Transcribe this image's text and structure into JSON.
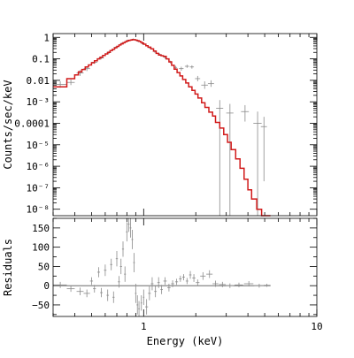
{
  "colors": {
    "model": "#d11a1a",
    "data": "#8a8a8a",
    "axes": "#000000"
  },
  "chart_data": [
    {
      "panel": "spectrum",
      "type": "line",
      "xlabel": "",
      "ylabel": "Counts/sec/keV",
      "xscale": "log",
      "yscale": "log",
      "xlim": [
        0.3,
        10
      ],
      "ylim": [
        5e-09,
        1.5
      ],
      "xticks": [
        {
          "value": 1,
          "label": ""
        },
        {
          "value": 10,
          "label": ""
        }
      ],
      "yticks": [
        {
          "value": 1,
          "label": "1"
        },
        {
          "value": 0.1,
          "label": "0.1"
        },
        {
          "value": 0.01,
          "label": "0.01"
        },
        {
          "value": 0.001,
          "label": "10⁻³"
        },
        {
          "value": 0.0001,
          "label": "0.0001"
        },
        {
          "value": 1e-05,
          "label": "10⁻⁵"
        },
        {
          "value": 1e-06,
          "label": "10⁻⁶"
        },
        {
          "value": 1e-07,
          "label": "10⁻⁷"
        },
        {
          "value": 1e-08,
          "label": "10⁻⁸"
        }
      ],
      "series": [
        {
          "kind": "model-step",
          "x": [
            0.3,
            0.36,
            0.4,
            0.42,
            0.44,
            0.46,
            0.48,
            0.5,
            0.52,
            0.54,
            0.56,
            0.58,
            0.6,
            0.62,
            0.64,
            0.66,
            0.68,
            0.7,
            0.72,
            0.74,
            0.76,
            0.78,
            0.8,
            0.82,
            0.84,
            0.86,
            0.88,
            0.9,
            0.92,
            0.94,
            0.96,
            0.98,
            1.0,
            1.03,
            1.06,
            1.1,
            1.14,
            1.18,
            1.22,
            1.26,
            1.3,
            1.35,
            1.4,
            1.45,
            1.5,
            1.56,
            1.62,
            1.68,
            1.75,
            1.82,
            1.9,
            1.98,
            2.06,
            2.16,
            2.26,
            2.38,
            2.5,
            2.6,
            2.75,
            2.9,
            3.05,
            3.2,
            3.4,
            3.6,
            3.8,
            4.0,
            4.2,
            4.5,
            4.8,
            5.1,
            5.4
          ],
          "y": [
            0.005,
            0.012,
            0.018,
            0.025,
            0.032,
            0.042,
            0.052,
            0.066,
            0.082,
            0.1,
            0.12,
            0.145,
            0.17,
            0.2,
            0.24,
            0.28,
            0.33,
            0.38,
            0.44,
            0.5,
            0.56,
            0.62,
            0.68,
            0.73,
            0.76,
            0.78,
            0.77,
            0.74,
            0.7,
            0.65,
            0.6,
            0.54,
            0.48,
            0.41,
            0.35,
            0.29,
            0.23,
            0.18,
            0.15,
            0.14,
            0.13,
            0.1,
            0.072,
            0.05,
            0.033,
            0.023,
            0.016,
            0.011,
            0.0075,
            0.005,
            0.0034,
            0.0023,
            0.0015,
            0.0009,
            0.00055,
            0.00033,
            0.00022,
            0.00011,
            6e-05,
            3e-05,
            1.3e-05,
            6e-06,
            2.2e-06,
            8e-07,
            2.5e-07,
            8e-08,
            3e-08,
            1e-08,
            5e-09,
            5e-09,
            5e-09
          ],
          "x_end": 5.4
        },
        {
          "kind": "data-points",
          "points": [
            {
              "x": 0.33,
              "xlo": 0.3,
              "xhi": 0.36,
              "y": 0.0065,
              "ylo": 0.0045,
              "yhi": 0.009
            },
            {
              "x": 0.38,
              "xlo": 0.36,
              "xhi": 0.4,
              "y": 0.008,
              "ylo": 0.006,
              "yhi": 0.011
            },
            {
              "x": 0.43,
              "xlo": 0.41,
              "xhi": 0.45,
              "y": 0.022,
              "ylo": 0.016,
              "yhi": 0.03
            },
            {
              "x": 0.47,
              "xlo": 0.45,
              "xhi": 0.49,
              "y": 0.035,
              "ylo": 0.027,
              "yhi": 0.045
            },
            {
              "x": 0.52,
              "xlo": 0.5,
              "xhi": 0.54,
              "y": 0.07,
              "ylo": 0.058,
              "yhi": 0.085
            },
            {
              "x": 0.57,
              "xlo": 0.55,
              "xhi": 0.59,
              "y": 0.11,
              "ylo": 0.095,
              "yhi": 0.13
            },
            {
              "x": 0.63,
              "xlo": 0.61,
              "xhi": 0.65,
              "y": 0.2,
              "ylo": 0.17,
              "yhi": 0.23
            },
            {
              "x": 0.69,
              "xlo": 0.67,
              "xhi": 0.71,
              "y": 0.34,
              "ylo": 0.3,
              "yhi": 0.38
            },
            {
              "x": 0.75,
              "xlo": 0.73,
              "xhi": 0.77,
              "y": 0.52,
              "ylo": 0.47,
              "yhi": 0.58
            },
            {
              "x": 0.81,
              "xlo": 0.79,
              "xhi": 0.83,
              "y": 0.72,
              "ylo": 0.66,
              "yhi": 0.78
            },
            {
              "x": 0.87,
              "xlo": 0.85,
              "xhi": 0.89,
              "y": 0.82,
              "ylo": 0.76,
              "yhi": 0.89
            },
            {
              "x": 0.93,
              "xlo": 0.91,
              "xhi": 0.95,
              "y": 0.66,
              "ylo": 0.6,
              "yhi": 0.72
            },
            {
              "x": 0.99,
              "xlo": 0.97,
              "xhi": 1.01,
              "y": 0.5,
              "ylo": 0.45,
              "yhi": 0.56
            },
            {
              "x": 1.08,
              "xlo": 1.05,
              "xhi": 1.11,
              "y": 0.34,
              "ylo": 0.3,
              "yhi": 0.38
            },
            {
              "x": 1.16,
              "xlo": 1.13,
              "xhi": 1.19,
              "y": 0.22,
              "ylo": 0.19,
              "yhi": 0.25
            },
            {
              "x": 1.24,
              "xlo": 1.21,
              "xhi": 1.27,
              "y": 0.16,
              "ylo": 0.14,
              "yhi": 0.18
            },
            {
              "x": 1.33,
              "xlo": 1.3,
              "xhi": 1.36,
              "y": 0.12,
              "ylo": 0.1,
              "yhi": 0.14
            },
            {
              "x": 1.43,
              "xlo": 1.4,
              "xhi": 1.46,
              "y": 0.07,
              "ylo": 0.06,
              "yhi": 0.082
            },
            {
              "x": 1.53,
              "xlo": 1.5,
              "xhi": 1.56,
              "y": 0.04,
              "ylo": 0.034,
              "yhi": 0.047
            },
            {
              "x": 1.65,
              "xlo": 1.6,
              "xhi": 1.7,
              "y": 0.035,
              "ylo": 0.028,
              "yhi": 0.043
            },
            {
              "x": 1.78,
              "xlo": 1.73,
              "xhi": 1.83,
              "y": 0.045,
              "ylo": 0.038,
              "yhi": 0.053
            },
            {
              "x": 1.9,
              "xlo": 1.85,
              "xhi": 1.95,
              "y": 0.042,
              "ylo": 0.035,
              "yhi": 0.05
            },
            {
              "x": 2.05,
              "xlo": 1.98,
              "xhi": 2.12,
              "y": 0.012,
              "ylo": 0.009,
              "yhi": 0.016
            },
            {
              "x": 2.25,
              "xlo": 2.15,
              "xhi": 2.35,
              "y": 0.006,
              "ylo": 0.004,
              "yhi": 0.009
            },
            {
              "x": 2.45,
              "xlo": 2.35,
              "xhi": 2.55,
              "y": 0.007,
              "ylo": 0.005,
              "yhi": 0.01
            },
            {
              "x": 2.75,
              "xlo": 2.62,
              "xhi": 2.88,
              "y": 0.0005,
              "ylo": 4.5e-09,
              "yhi": 0.0012
            },
            {
              "x": 3.15,
              "xlo": 3.0,
              "xhi": 3.3,
              "y": 0.0003,
              "ylo": 4.5e-09,
              "yhi": 0.0008
            },
            {
              "x": 3.85,
              "xlo": 3.65,
              "xhi": 4.05,
              "y": 0.00035,
              "ylo": 0.00012,
              "yhi": 0.0007
            },
            {
              "x": 4.55,
              "xlo": 4.3,
              "xhi": 4.8,
              "y": 0.0001,
              "ylo": 4.5e-09,
              "yhi": 0.00035
            },
            {
              "x": 4.95,
              "xlo": 4.75,
              "xhi": 5.15,
              "y": 7e-05,
              "ylo": 2e-07,
              "yhi": 0.0002
            }
          ]
        }
      ]
    },
    {
      "panel": "residuals",
      "type": "scatter",
      "xlabel": "Energy (keV)",
      "ylabel": "Residuals",
      "xscale": "log",
      "xlim": [
        0.3,
        10
      ],
      "ylim": [
        -80,
        175
      ],
      "zero_line": true,
      "xticks": [
        {
          "value": 1,
          "label": "1"
        },
        {
          "value": 10,
          "label": "10"
        }
      ],
      "yticks": [
        {
          "value": 150,
          "label": "150"
        },
        {
          "value": 100,
          "label": "100"
        },
        {
          "value": 50,
          "label": "50"
        },
        {
          "value": 0,
          "label": "0"
        },
        {
          "value": -50,
          "label": "−50"
        }
      ],
      "series": [
        {
          "kind": "residual-points",
          "points": [
            {
              "x": 0.33,
              "xlo": 0.3,
              "xhi": 0.36,
              "y": 2,
              "ylo": -6,
              "yhi": 10
            },
            {
              "x": 0.38,
              "xlo": 0.36,
              "xhi": 0.4,
              "y": -8,
              "ylo": -16,
              "yhi": 0
            },
            {
              "x": 0.43,
              "xlo": 0.41,
              "xhi": 0.45,
              "y": -15,
              "ylo": -25,
              "yhi": -5
            },
            {
              "x": 0.47,
              "xlo": 0.45,
              "xhi": 0.49,
              "y": -20,
              "ylo": -30,
              "yhi": -10
            },
            {
              "x": 0.5,
              "xlo": 0.49,
              "xhi": 0.51,
              "y": 12,
              "ylo": 2,
              "yhi": 22
            },
            {
              "x": 0.52,
              "xlo": 0.51,
              "xhi": 0.53,
              "y": -8,
              "ylo": -18,
              "yhi": 2
            },
            {
              "x": 0.55,
              "xlo": 0.54,
              "xhi": 0.56,
              "y": 35,
              "ylo": 22,
              "yhi": 48
            },
            {
              "x": 0.57,
              "xlo": 0.56,
              "xhi": 0.58,
              "y": -18,
              "ylo": -30,
              "yhi": -6
            },
            {
              "x": 0.6,
              "xlo": 0.59,
              "xhi": 0.61,
              "y": 40,
              "ylo": 25,
              "yhi": 55
            },
            {
              "x": 0.62,
              "xlo": 0.61,
              "xhi": 0.63,
              "y": -25,
              "ylo": -40,
              "yhi": -10
            },
            {
              "x": 0.65,
              "xlo": 0.64,
              "xhi": 0.66,
              "y": 55,
              "ylo": 40,
              "yhi": 70
            },
            {
              "x": 0.67,
              "xlo": 0.66,
              "xhi": 0.68,
              "y": -30,
              "ylo": -45,
              "yhi": -15
            },
            {
              "x": 0.7,
              "xlo": 0.69,
              "xhi": 0.71,
              "y": 70,
              "ylo": 50,
              "yhi": 90
            },
            {
              "x": 0.72,
              "xlo": 0.71,
              "xhi": 0.73,
              "y": 10,
              "ylo": -5,
              "yhi": 25
            },
            {
              "x": 0.74,
              "xlo": 0.73,
              "xhi": 0.75,
              "y": 50,
              "ylo": 30,
              "yhi": 70
            },
            {
              "x": 0.76,
              "xlo": 0.75,
              "xhi": 0.77,
              "y": 95,
              "ylo": 75,
              "yhi": 115
            },
            {
              "x": 0.78,
              "xlo": 0.77,
              "xhi": 0.79,
              "y": 30,
              "ylo": 10,
              "yhi": 50
            },
            {
              "x": 0.8,
              "xlo": 0.79,
              "xhi": 0.81,
              "y": 140,
              "ylo": 115,
              "yhi": 165
            },
            {
              "x": 0.82,
              "xlo": 0.81,
              "xhi": 0.83,
              "y": 160,
              "ylo": 140,
              "yhi": 175
            },
            {
              "x": 0.84,
              "xlo": 0.83,
              "xhi": 0.85,
              "y": 150,
              "ylo": 125,
              "yhi": 175
            },
            {
              "x": 0.86,
              "xlo": 0.85,
              "xhi": 0.87,
              "y": 120,
              "ylo": 95,
              "yhi": 145
            },
            {
              "x": 0.88,
              "xlo": 0.87,
              "xhi": 0.89,
              "y": 60,
              "ylo": 35,
              "yhi": 85
            },
            {
              "x": 0.9,
              "xlo": 0.89,
              "xhi": 0.91,
              "y": -20,
              "ylo": -45,
              "yhi": 5
            },
            {
              "x": 0.92,
              "xlo": 0.91,
              "xhi": 0.93,
              "y": -50,
              "ylo": -75,
              "yhi": -25
            },
            {
              "x": 0.94,
              "xlo": 0.93,
              "xhi": 0.95,
              "y": -60,
              "ylo": -80,
              "yhi": -40
            },
            {
              "x": 0.97,
              "xlo": 0.96,
              "xhi": 0.98,
              "y": -45,
              "ylo": -65,
              "yhi": -25
            },
            {
              "x": 1.0,
              "xlo": 0.99,
              "xhi": 1.01,
              "y": -30,
              "ylo": -50,
              "yhi": -10
            },
            {
              "x": 1.04,
              "xlo": 1.02,
              "xhi": 1.06,
              "y": -55,
              "ylo": -75,
              "yhi": -35
            },
            {
              "x": 1.08,
              "xlo": 1.06,
              "xhi": 1.1,
              "y": -20,
              "ylo": -38,
              "yhi": -2
            },
            {
              "x": 1.12,
              "xlo": 1.1,
              "xhi": 1.14,
              "y": 5,
              "ylo": -12,
              "yhi": 22
            },
            {
              "x": 1.17,
              "xlo": 1.15,
              "xhi": 1.19,
              "y": -15,
              "ylo": -30,
              "yhi": 0
            },
            {
              "x": 1.22,
              "xlo": 1.2,
              "xhi": 1.24,
              "y": 8,
              "ylo": -6,
              "yhi": 22
            },
            {
              "x": 1.27,
              "xlo": 1.25,
              "xhi": 1.29,
              "y": -10,
              "ylo": -22,
              "yhi": 2
            },
            {
              "x": 1.33,
              "xlo": 1.3,
              "xhi": 1.36,
              "y": 12,
              "ylo": 2,
              "yhi": 22
            },
            {
              "x": 1.4,
              "xlo": 1.37,
              "xhi": 1.43,
              "y": -5,
              "ylo": -15,
              "yhi": 5
            },
            {
              "x": 1.47,
              "xlo": 1.44,
              "xhi": 1.5,
              "y": 5,
              "ylo": -4,
              "yhi": 14
            },
            {
              "x": 1.55,
              "xlo": 1.52,
              "xhi": 1.58,
              "y": 10,
              "ylo": 2,
              "yhi": 18
            },
            {
              "x": 1.63,
              "xlo": 1.6,
              "xhi": 1.66,
              "y": 18,
              "ylo": 10,
              "yhi": 26
            },
            {
              "x": 1.7,
              "xlo": 1.67,
              "xhi": 1.73,
              "y": 22,
              "ylo": 14,
              "yhi": 30
            },
            {
              "x": 1.78,
              "xlo": 1.75,
              "xhi": 1.81,
              "y": 12,
              "ylo": 4,
              "yhi": 20
            },
            {
              "x": 1.86,
              "xlo": 1.83,
              "xhi": 1.89,
              "y": 28,
              "ylo": 18,
              "yhi": 38
            },
            {
              "x": 1.95,
              "xlo": 1.91,
              "xhi": 1.99,
              "y": 20,
              "ylo": 10,
              "yhi": 30
            },
            {
              "x": 2.05,
              "xlo": 2.0,
              "xhi": 2.1,
              "y": 8,
              "ylo": 0,
              "yhi": 16
            },
            {
              "x": 2.2,
              "xlo": 2.12,
              "xhi": 2.28,
              "y": 25,
              "ylo": 15,
              "yhi": 35
            },
            {
              "x": 2.4,
              "xlo": 2.3,
              "xhi": 2.5,
              "y": 30,
              "ylo": 20,
              "yhi": 40
            },
            {
              "x": 2.6,
              "xlo": 2.5,
              "xhi": 2.7,
              "y": 5,
              "ylo": -3,
              "yhi": 13
            },
            {
              "x": 2.85,
              "xlo": 2.72,
              "xhi": 2.98,
              "y": 3,
              "ylo": -4,
              "yhi": 10
            },
            {
              "x": 3.15,
              "xlo": 3.0,
              "xhi": 3.3,
              "y": 0,
              "ylo": -6,
              "yhi": 6
            },
            {
              "x": 3.55,
              "xlo": 3.35,
              "xhi": 3.75,
              "y": 2,
              "ylo": -4,
              "yhi": 8
            },
            {
              "x": 4.05,
              "xlo": 3.8,
              "xhi": 4.3,
              "y": 5,
              "ylo": -2,
              "yhi": 12
            },
            {
              "x": 4.65,
              "xlo": 4.35,
              "xhi": 4.95,
              "y": 0,
              "ylo": -5,
              "yhi": 5
            },
            {
              "x": 5.15,
              "xlo": 4.95,
              "xhi": 5.4,
              "y": 1,
              "ylo": -3,
              "yhi": 5
            }
          ]
        }
      ]
    }
  ]
}
